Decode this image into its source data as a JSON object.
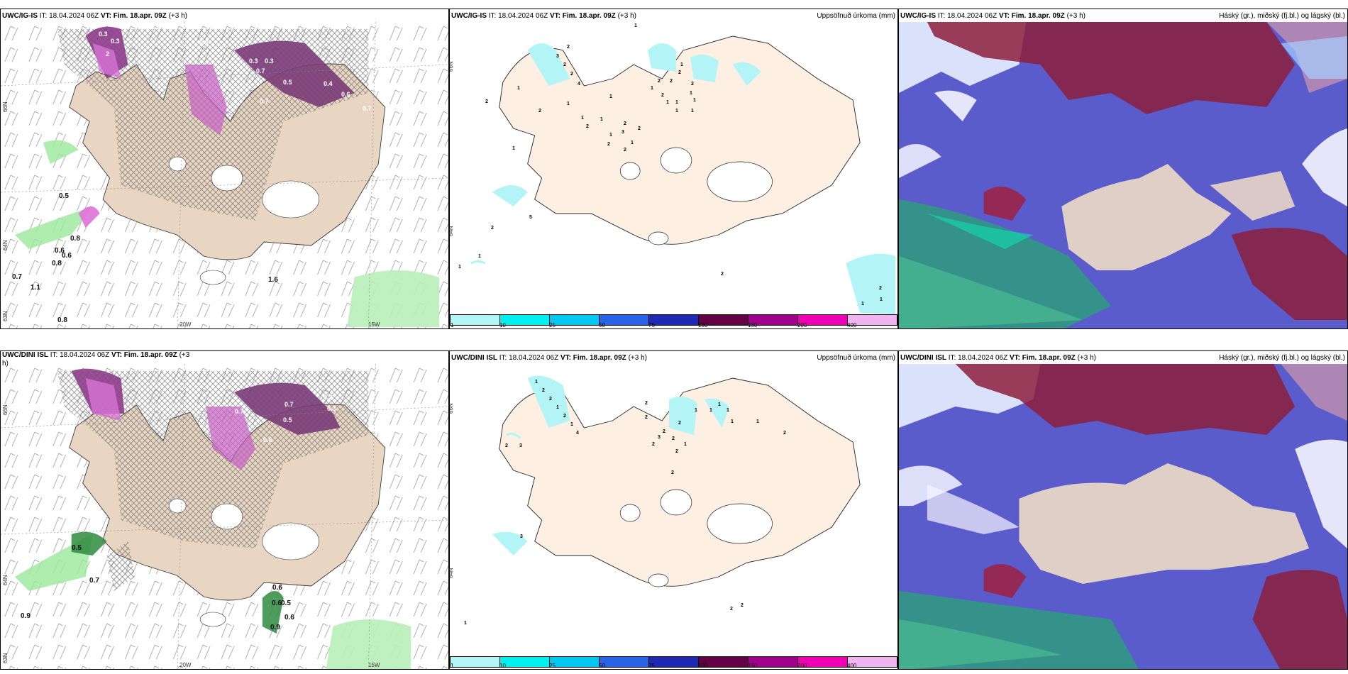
{
  "panels": {
    "p1": {
      "model": "UWC/IG-IS",
      "it_label": "IT:",
      "it": "18.04.2024 06Z",
      "vt_label": "VT:",
      "vt": "Fim. 18.apr. 09Z",
      "lead": "(+3 h)"
    },
    "p2": {
      "model": "UWC/IG-IS",
      "it_label": "IT:",
      "it": "18.04.2024 06Z",
      "vt_label": "VT:",
      "vt": "Fim. 18.apr. 09Z",
      "lead": "(+3 h)",
      "right": "Uppsöfnuð úrkoma (mm)"
    },
    "p3": {
      "model": "UWC/IG-IS",
      "it_label": "IT:",
      "it": "18.04.2024 06Z",
      "vt_label": "VT:",
      "vt": "Fim. 18.apr. 09Z",
      "lead": "(+3 h)",
      "right": "Háský (gr.), miðský (fj.bl.) og lágský (bl.)"
    },
    "p4": {
      "model": "UWC/DINI ISL",
      "it_label": "IT:",
      "it": "18.04.2024 06Z",
      "vt_label": "VT:",
      "vt": "Fim. 18.apr. 09Z",
      "lead": "(+3",
      "lead2": "h)"
    },
    "p5": {
      "model": "UWC/DINI ISL",
      "it_label": "IT:",
      "it": "18.04.2024 06Z",
      "vt_label": "VT:",
      "vt": "Fim. 18.apr. 09Z",
      "lead": "(+3 h)",
      "right": "Uppsöfnuð úrkoma (mm)"
    },
    "p6": {
      "model": "UWC/DINI ISL",
      "it_label": "IT:",
      "it": "18.04.2024 06Z",
      "vt_label": "VT:",
      "vt": "Fim. 18.apr. 09Z",
      "lead": "(+3 h)",
      "right": "Háský (gr.), miðský (fj.bl.) og lágský (bl.)"
    }
  },
  "axes": {
    "lat_66": "66N",
    "lat_64": "64N",
    "lat_63": "63N",
    "lon_20": "20W",
    "lon_15": "15W"
  },
  "colorbar": {
    "ticks": [
      "1",
      "10",
      "25",
      "50",
      "75",
      "100",
      "150",
      "200",
      "400"
    ],
    "colors": [
      "#b3f4f7",
      "#00f0f0",
      "#00c8f0",
      "#2a64e6",
      "#1e2ab4",
      "#640046",
      "#a0008c",
      "#f000b4",
      "#f0b4f0"
    ]
  },
  "top_precip_values": [
    "1",
    "2",
    "3",
    "2",
    "2",
    "4",
    "1",
    "2",
    "1",
    "2",
    "1",
    "1",
    "2",
    "1",
    "1",
    "2",
    "3",
    "2",
    "1",
    "2",
    "2",
    "1",
    "2",
    "1",
    "1",
    "1",
    "1",
    "2",
    "2",
    "1",
    "2",
    "1",
    "2",
    "1",
    "1",
    "5",
    "2",
    "1",
    "1",
    "2",
    "2",
    "1",
    "1"
  ],
  "bottom_precip_values": [
    "1",
    "2",
    "2",
    "1",
    "2",
    "1",
    "2",
    "3",
    "4",
    "2",
    "2",
    "2",
    "2",
    "3",
    "2",
    "2",
    "1",
    "2",
    "1",
    "1",
    "1",
    "2",
    "1",
    "1",
    "1",
    "2",
    "3",
    "2",
    "2",
    "1"
  ],
  "top_wind_values": [
    "0.3",
    "0.3",
    "0.3",
    "0.3",
    "2",
    "0.3",
    "0.3",
    "0.7",
    "0.4",
    "0.7",
    "0.5",
    "0.6",
    "0.7",
    "0.5",
    "0.6",
    "0.8",
    "0.6",
    "0.8",
    "0.7",
    "1.1",
    "1.6",
    "0.8",
    "0.6",
    "0.5",
    "0.4",
    "0.3"
  ],
  "bottom_wind_values": [
    "0.3",
    "0.7",
    "0.3",
    "0.5",
    "0.7",
    "0.6",
    "0.5",
    "0.7",
    "0.6",
    "0.9",
    "0.6",
    "0.5",
    "0.6",
    "0.9",
    "0.7",
    "1.1",
    "0.3"
  ]
}
